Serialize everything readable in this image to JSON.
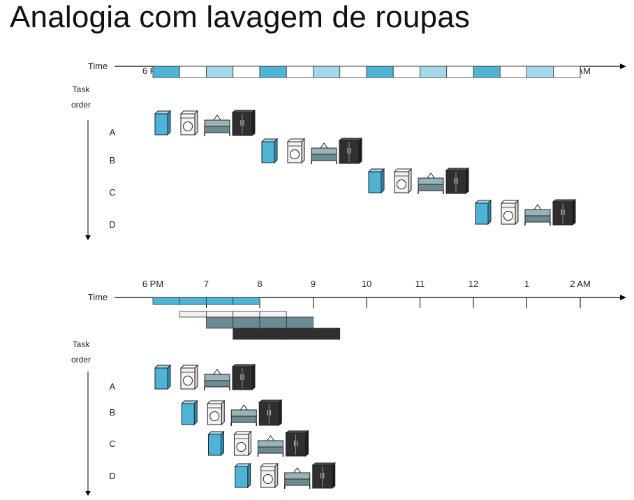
{
  "slide": {
    "title": "Analogia com lavagem de roupas"
  },
  "diagram": {
    "time_label": "Time",
    "task_order_label": [
      "Task",
      "order"
    ],
    "time_ticks": [
      "6 PM",
      "7",
      "8",
      "9",
      "10",
      "11",
      "12",
      "1",
      "2 AM"
    ],
    "tasks": [
      "A",
      "B",
      "C",
      "D"
    ],
    "stages": [
      {
        "icon": "washer-icon",
        "color": "#4fb3d6"
      },
      {
        "icon": "dryer-icon",
        "color": "#f2f2f2"
      },
      {
        "icon": "folding-table-icon",
        "color": "#6b8a91"
      },
      {
        "icon": "closet-icon",
        "color": "#2f2f2f"
      }
    ],
    "sequential": {
      "task_start_slots": [
        0,
        4,
        8,
        12
      ]
    },
    "pipelined": {
      "task_start_slots": [
        0,
        1,
        2,
        3
      ]
    }
  }
}
